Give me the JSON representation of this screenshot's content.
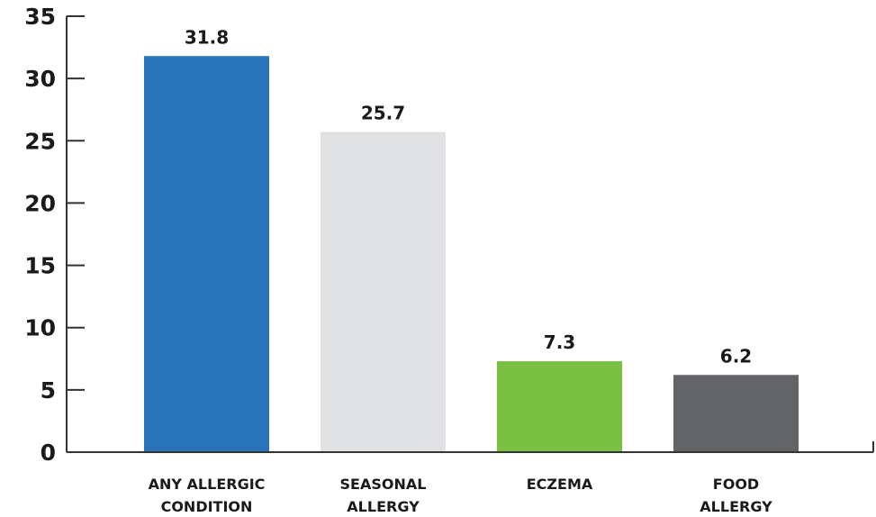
{
  "chart_data": {
    "type": "bar",
    "title": "",
    "xlabel": "",
    "ylabel": "",
    "ylim": [
      0,
      35
    ],
    "yticks": [
      0,
      5,
      10,
      15,
      20,
      25,
      30,
      35
    ],
    "grid": false,
    "categories": [
      [
        "ANY ALLERGIC",
        "CONDITION"
      ],
      [
        "SEASONAL",
        "ALLERGY"
      ],
      [
        "ECZEMA"
      ],
      [
        "FOOD",
        "ALLERGY"
      ]
    ],
    "values": [
      31.8,
      25.7,
      7.3,
      6.2
    ],
    "value_labels": [
      "31.8",
      "25.7",
      "7.3",
      "6.2"
    ],
    "colors": [
      "#2873BA",
      "#E0E1E3",
      "#7AC143",
      "#636466"
    ]
  }
}
